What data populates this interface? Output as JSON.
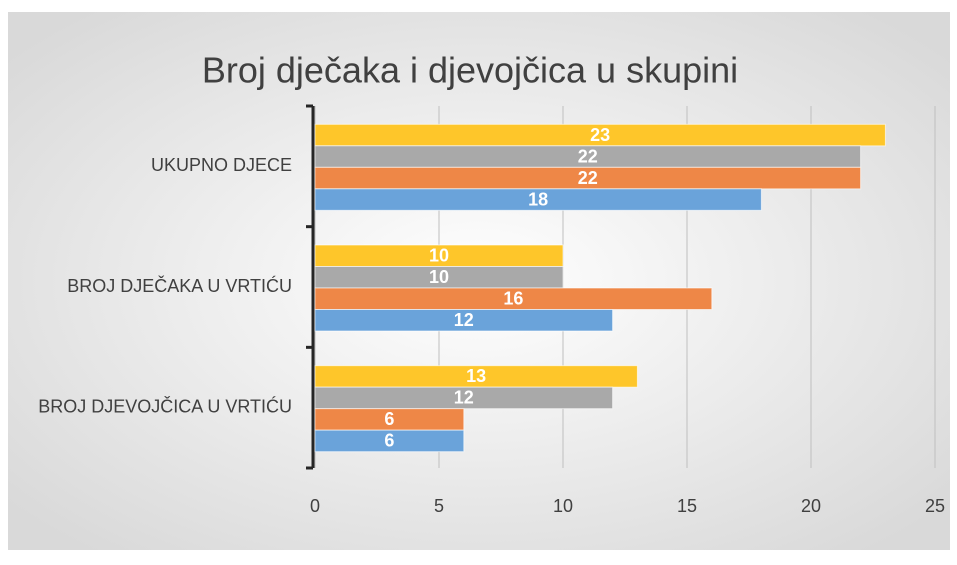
{
  "chart_data": {
    "type": "bar",
    "orientation": "horizontal",
    "title": "Broj dječaka i djevojčica u skupini",
    "categories": [
      "UKUPNO DJECE",
      "BROJ DJEČAKA U VRTIĆU",
      "BROJ DJEVOJČICA U VRTIĆU"
    ],
    "series": [
      {
        "color": "#fec62a",
        "values": [
          23,
          10,
          13
        ]
      },
      {
        "color": "#a9a9a9",
        "values": [
          22,
          10,
          12
        ]
      },
      {
        "color": "#ee8747",
        "values": [
          22,
          16,
          6
        ]
      },
      {
        "color": "#6aa3da",
        "values": [
          18,
          12,
          6
        ]
      }
    ],
    "xlim": [
      0,
      25
    ],
    "xticks": [
      0,
      5,
      10,
      15,
      20,
      25
    ],
    "grid": true
  }
}
